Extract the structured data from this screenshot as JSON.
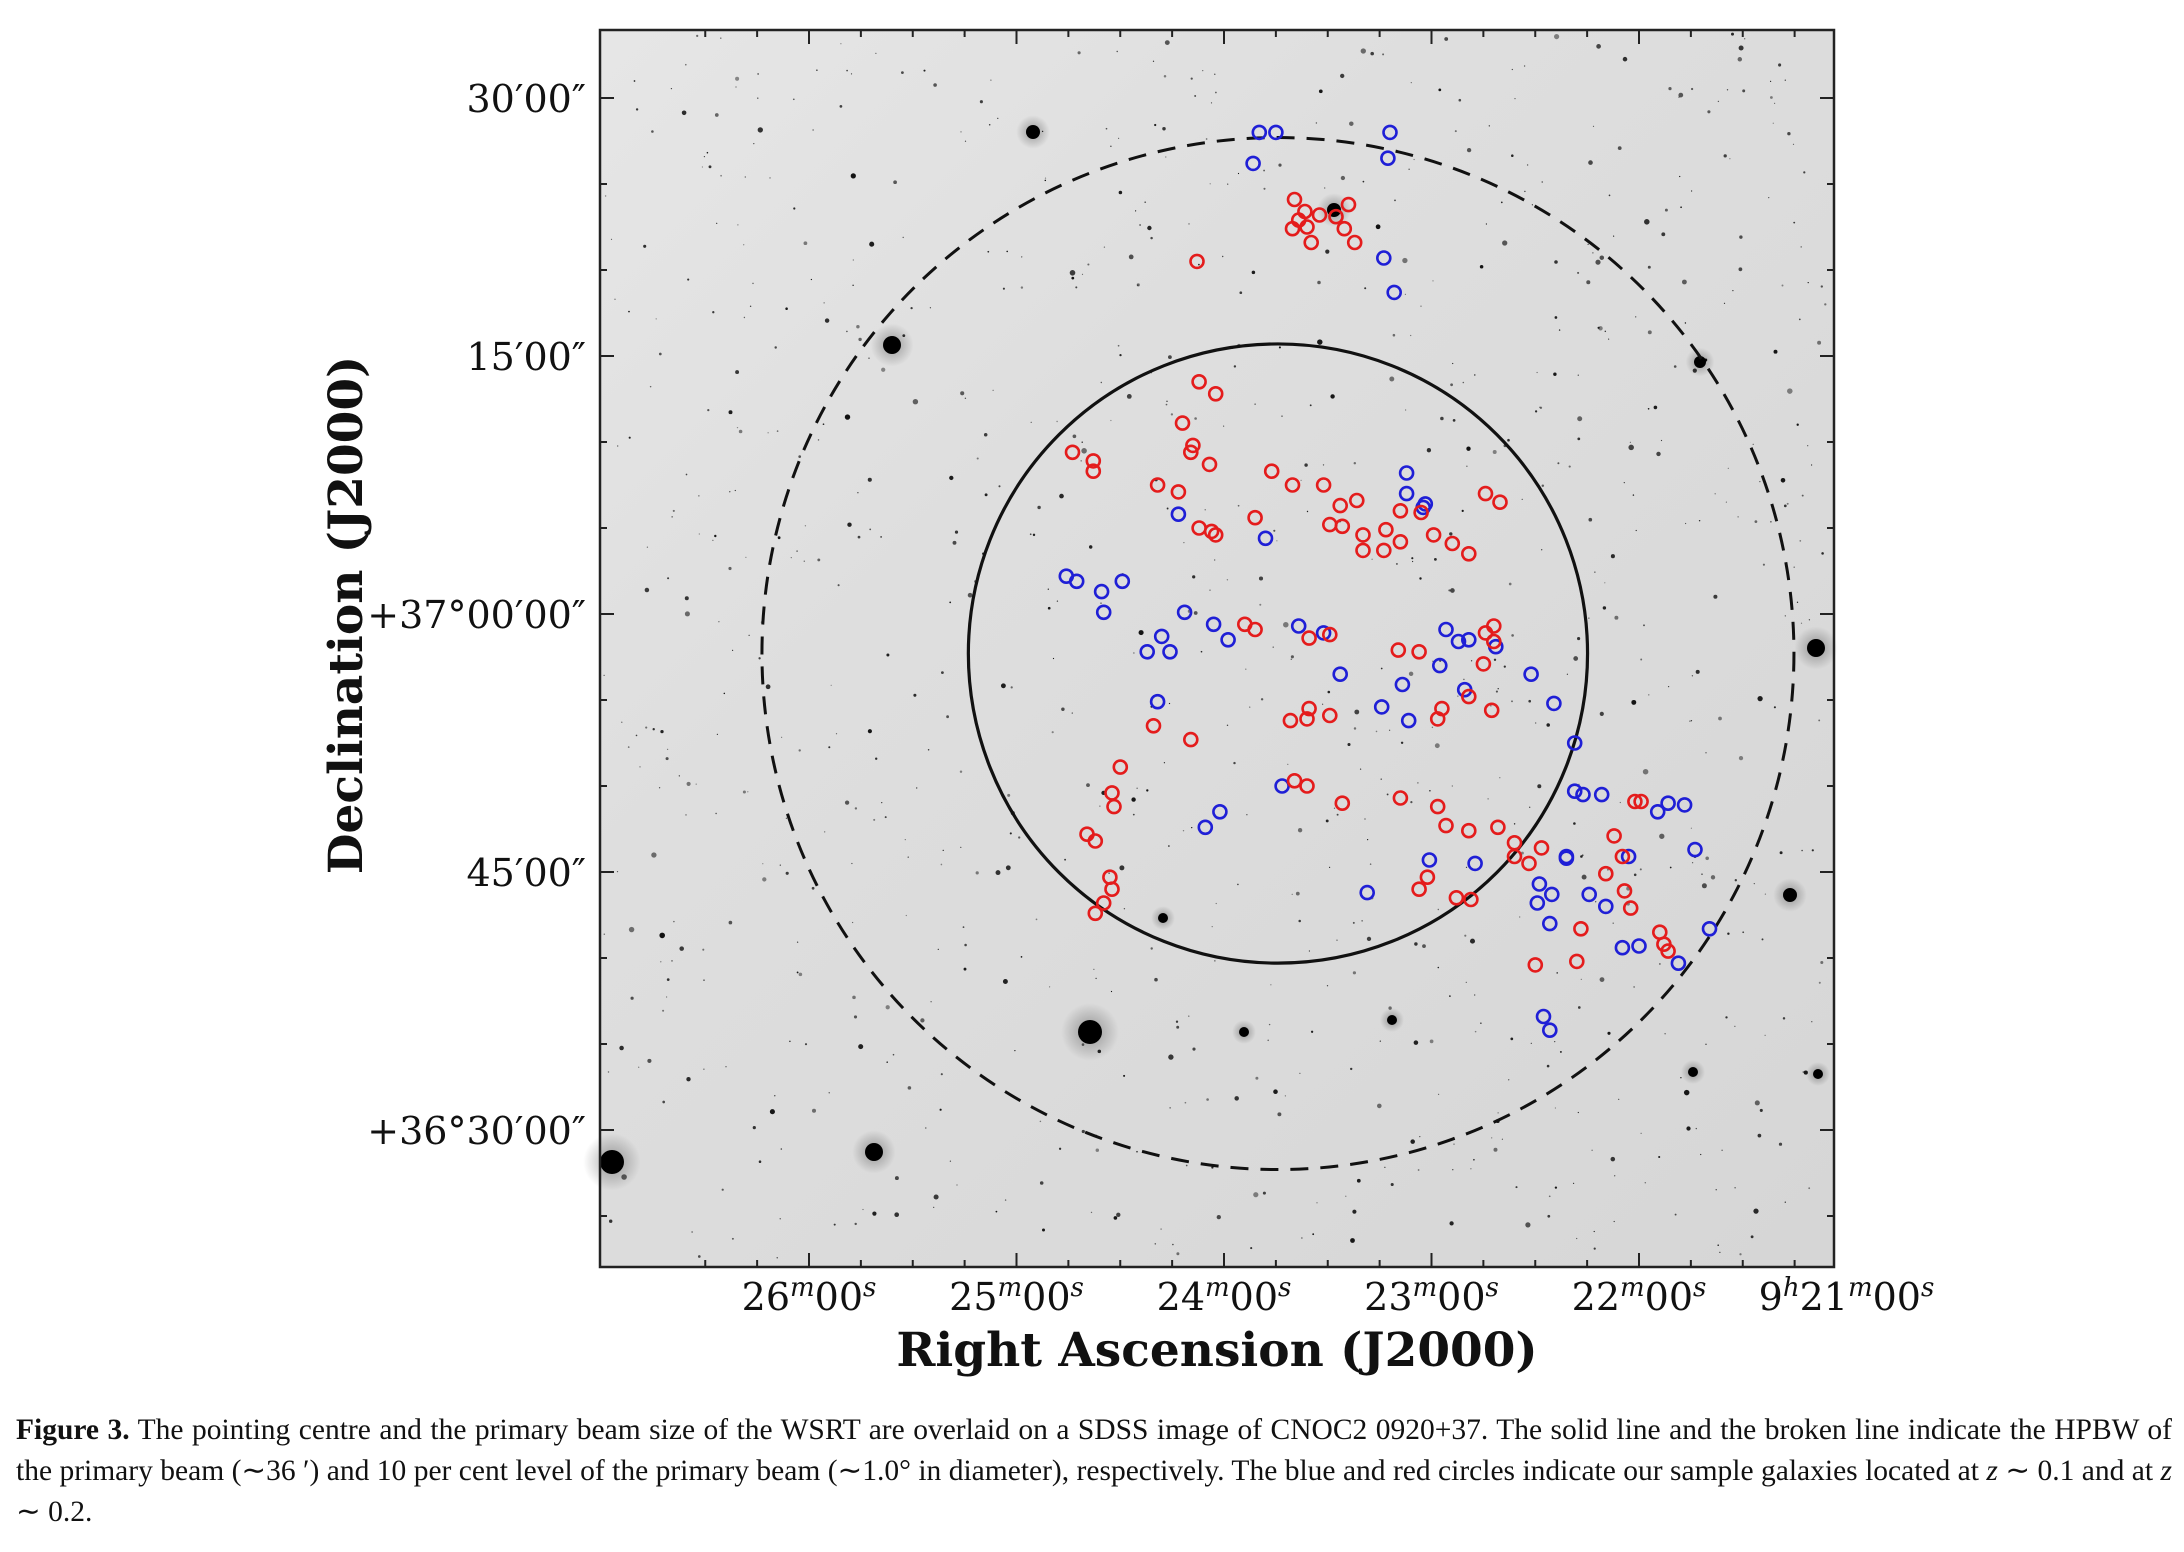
{
  "figure": {
    "ylabel": "Declination (J2000)",
    "xlabel": "Right Ascension (J2000)",
    "yticks": [
      {
        "value": "+36°30′00″",
        "pre": "+36°30′00″",
        "sup": ""
      },
      {
        "value": "45′00″",
        "pre": "45′00″",
        "sup": ""
      },
      {
        "value": "+37°00′00″",
        "pre": "+37°00′00″",
        "sup": ""
      },
      {
        "value": "15′00″",
        "pre": "15′00″",
        "sup": ""
      },
      {
        "value": "30′00″",
        "pre": "30′00″",
        "sup": ""
      }
    ],
    "xticks": [
      {
        "value": "26m00s",
        "parts": [
          [
            "26",
            ""
          ],
          [
            "m",
            "sup"
          ],
          [
            "00",
            ""
          ],
          [
            "s",
            "sup"
          ]
        ]
      },
      {
        "value": "25m00s",
        "parts": [
          [
            "25",
            ""
          ],
          [
            "m",
            "sup"
          ],
          [
            "00",
            ""
          ],
          [
            "s",
            "sup"
          ]
        ]
      },
      {
        "value": "24m00s",
        "parts": [
          [
            "24",
            ""
          ],
          [
            "m",
            "sup"
          ],
          [
            "00",
            ""
          ],
          [
            "s",
            "sup"
          ]
        ]
      },
      {
        "value": "23m00s",
        "parts": [
          [
            "23",
            ""
          ],
          [
            "m",
            "sup"
          ],
          [
            "00",
            ""
          ],
          [
            "s",
            "sup"
          ]
        ]
      },
      {
        "value": "22m00s",
        "parts": [
          [
            "22",
            ""
          ],
          [
            "m",
            "sup"
          ],
          [
            "00",
            ""
          ],
          [
            "s",
            "sup"
          ]
        ]
      },
      {
        "value": "9h21m00s",
        "parts": [
          [
            "9",
            ""
          ],
          [
            "h",
            "sup"
          ],
          [
            "21",
            ""
          ],
          [
            "m",
            "sup"
          ],
          [
            "00",
            ""
          ],
          [
            "s",
            "sup"
          ]
        ]
      }
    ],
    "colors": {
      "blue": "#1f1fd6",
      "red": "#e41c1c",
      "sky": "#dcdcdc"
    }
  },
  "chart_data": {
    "type": "scatter",
    "background": "SDSS grayscale image of CNOC2 0920+37",
    "xlabel": "Right Ascension (J2000)",
    "ylabel": "Declination (J2000)",
    "ra_ticks_min": [
      26,
      25,
      24,
      23,
      22,
      21
    ],
    "dec_ticks_arcmin_from_37deg": [
      -30,
      -15,
      0,
      15,
      30
    ],
    "beams": [
      {
        "name": "HPBW",
        "style": "solid",
        "center_ra_min": 23.74,
        "center_dec_arcmin": -2.3,
        "radius_arcmin": 18.0
      },
      {
        "name": "10 per cent level",
        "style": "dashed",
        "center_ra_min": 23.74,
        "center_dec_arcmin": -2.3,
        "radius_arcmin": 30.0
      }
    ],
    "series": [
      {
        "name": "z ~ 0.1",
        "color": "#1f1fd6",
        "points": [
          [
            23.83,
            28
          ],
          [
            23.75,
            28
          ],
          [
            23.2,
            28
          ],
          [
            23.86,
            26.2
          ],
          [
            23.21,
            26.5
          ],
          [
            23.23,
            20.7
          ],
          [
            23.18,
            18.7
          ],
          [
            23.12,
            8.2
          ],
          [
            23.12,
            7.0
          ],
          [
            24.22,
            5.8
          ],
          [
            23.8,
            4.4
          ],
          [
            23.03,
            6.4
          ],
          [
            23.04,
            6.2
          ],
          [
            24.71,
            1.9
          ],
          [
            24.76,
            2.2
          ],
          [
            24.49,
            1.9
          ],
          [
            24.59,
            1.3
          ],
          [
            24.58,
            0.1
          ],
          [
            24.37,
            -2.2
          ],
          [
            24.32,
            -5.1
          ],
          [
            24.19,
            0.1
          ],
          [
            24.05,
            -0.6
          ],
          [
            24.3,
            -1.3
          ],
          [
            24.26,
            -2.2
          ],
          [
            23.98,
            -1.5
          ],
          [
            23.52,
            -1.1
          ],
          [
            23.64,
            -0.7
          ],
          [
            23.44,
            -3.5
          ],
          [
            23.14,
            -4.1
          ],
          [
            23.24,
            -5.4
          ],
          [
            23.11,
            -6.2
          ],
          [
            22.93,
            -0.9
          ],
          [
            22.87,
            -1.6
          ],
          [
            22.82,
            -1.5
          ],
          [
            22.96,
            -3.0
          ],
          [
            22.84,
            -4.4
          ],
          [
            22.31,
            -7.5
          ],
          [
            22.69,
            -1.9
          ],
          [
            22.52,
            -3.5
          ],
          [
            22.41,
            -5.2
          ],
          [
            22.31,
            -10.3
          ],
          [
            22.27,
            -10.5
          ],
          [
            22.18,
            -10.5
          ],
          [
            22.05,
            -14.1
          ],
          [
            21.91,
            -11.5
          ],
          [
            21.86,
            -11.0
          ],
          [
            21.78,
            -11.1
          ],
          [
            21.73,
            -13.7
          ],
          [
            24.09,
            -12.4
          ],
          [
            24.02,
            -11.5
          ],
          [
            23.72,
            -10.0
          ],
          [
            23.31,
            -16.2
          ],
          [
            23.01,
            -14.3
          ],
          [
            22.79,
            -14.5
          ],
          [
            22.48,
            -15.7
          ],
          [
            22.35,
            -14.1
          ],
          [
            22.35,
            -14.2
          ],
          [
            22.42,
            -16.3
          ],
          [
            22.24,
            -16.3
          ],
          [
            22.43,
            -18.0
          ],
          [
            22.49,
            -16.8
          ],
          [
            22.16,
            -17.0
          ],
          [
            22.08,
            -19.4
          ],
          [
            22.0,
            -19.3
          ],
          [
            21.81,
            -20.3
          ],
          [
            21.66,
            -18.3
          ],
          [
            22.46,
            -23.4
          ],
          [
            22.43,
            -24.2
          ]
        ]
      },
      {
        "name": "z ~ 0.2",
        "color": "#e41c1c",
        "points": [
          [
            23.66,
            24.1
          ],
          [
            23.61,
            23.4
          ],
          [
            23.54,
            23.2
          ],
          [
            23.64,
            22.9
          ],
          [
            23.46,
            23.1
          ],
          [
            23.4,
            23.8
          ],
          [
            23.42,
            22.4
          ],
          [
            23.6,
            22.5
          ],
          [
            24.13,
            20.5
          ],
          [
            23.67,
            22.4
          ],
          [
            23.58,
            21.6
          ],
          [
            23.37,
            21.6
          ],
          [
            24.12,
            13.5
          ],
          [
            24.04,
            12.8
          ],
          [
            24.2,
            11.1
          ],
          [
            24.15,
            9.8
          ],
          [
            24.16,
            9.4
          ],
          [
            24.07,
            8.7
          ],
          [
            24.73,
            9.4
          ],
          [
            24.63,
            8.9
          ],
          [
            24.63,
            8.3
          ],
          [
            24.22,
            7.1
          ],
          [
            24.32,
            7.5
          ],
          [
            23.77,
            8.3
          ],
          [
            23.52,
            7.5
          ],
          [
            23.67,
            7.5
          ],
          [
            23.36,
            6.6
          ],
          [
            23.44,
            6.3
          ],
          [
            23.15,
            6.0
          ],
          [
            23.05,
            5.9
          ],
          [
            22.74,
            7.0
          ],
          [
            22.67,
            6.5
          ],
          [
            24.06,
            4.8
          ],
          [
            24.12,
            5.0
          ],
          [
            24.04,
            4.6
          ],
          [
            23.85,
            5.6
          ],
          [
            23.49,
            5.2
          ],
          [
            23.43,
            5.1
          ],
          [
            23.33,
            4.6
          ],
          [
            23.22,
            4.9
          ],
          [
            23.15,
            4.2
          ],
          [
            23.33,
            3.7
          ],
          [
            23.23,
            3.7
          ],
          [
            22.99,
            4.6
          ],
          [
            22.9,
            4.1
          ],
          [
            22.82,
            3.5
          ],
          [
            23.9,
            -0.6
          ],
          [
            23.85,
            -0.9
          ],
          [
            23.59,
            -1.4
          ],
          [
            23.49,
            -1.2
          ],
          [
            23.16,
            -2.1
          ],
          [
            23.06,
            -2.2
          ],
          [
            22.7,
            -1.6
          ],
          [
            22.74,
            -1.1
          ],
          [
            22.7,
            -0.7
          ],
          [
            22.75,
            -2.9
          ],
          [
            22.82,
            -4.8
          ],
          [
            22.95,
            -5.5
          ],
          [
            22.97,
            -6.1
          ],
          [
            22.71,
            -5.6
          ],
          [
            23.59,
            -5.5
          ],
          [
            23.49,
            -5.9
          ],
          [
            23.6,
            -6.1
          ],
          [
            23.68,
            -6.2
          ],
          [
            24.34,
            -6.5
          ],
          [
            24.16,
            -7.3
          ],
          [
            24.5,
            -8.9
          ],
          [
            24.54,
            -10.4
          ],
          [
            24.53,
            -11.2
          ],
          [
            23.6,
            -10.0
          ],
          [
            23.66,
            -9.7
          ],
          [
            23.43,
            -11.0
          ],
          [
            23.15,
            -10.7
          ],
          [
            22.97,
            -11.2
          ],
          [
            22.93,
            -12.3
          ],
          [
            22.82,
            -12.6
          ],
          [
            22.47,
            -13.6
          ],
          [
            22.53,
            -14.5
          ],
          [
            22.6,
            -14.1
          ],
          [
            22.6,
            -13.3
          ],
          [
            22.68,
            -12.4
          ],
          [
            22.02,
            -10.9
          ],
          [
            21.99,
            -10.9
          ],
          [
            22.12,
            -12.9
          ],
          [
            22.08,
            -14.1
          ],
          [
            22.16,
            -15.1
          ],
          [
            22.07,
            -16.1
          ],
          [
            22.04,
            -17.1
          ],
          [
            22.28,
            -18.3
          ],
          [
            21.9,
            -18.5
          ],
          [
            21.88,
            -19.2
          ],
          [
            21.86,
            -19.6
          ],
          [
            22.3,
            -20.2
          ],
          [
            22.5,
            -20.4
          ],
          [
            24.66,
            -12.8
          ],
          [
            24.62,
            -13.2
          ],
          [
            24.55,
            -15.3
          ],
          [
            24.54,
            -16.0
          ],
          [
            24.58,
            -16.8
          ],
          [
            24.62,
            -17.4
          ],
          [
            23.06,
            -16.0
          ],
          [
            23.02,
            -15.3
          ],
          [
            22.88,
            -16.5
          ],
          [
            22.81,
            -16.6
          ]
        ]
      }
    ]
  },
  "caption": {
    "label": "Figure 3.",
    "text": "The pointing centre and the primary beam size of the WSRT are overlaid on a SDSS image of CNOC2 0920+37. The solid line and the broken line indicate the HPBW of the primary beam (∼36 ′) and 10 per cent level of the primary beam (∼1.0° in diameter), respectively. The blue and red circles indicate our sample galaxies located at z ∼ 0.1 and at z ∼ 0.2."
  }
}
